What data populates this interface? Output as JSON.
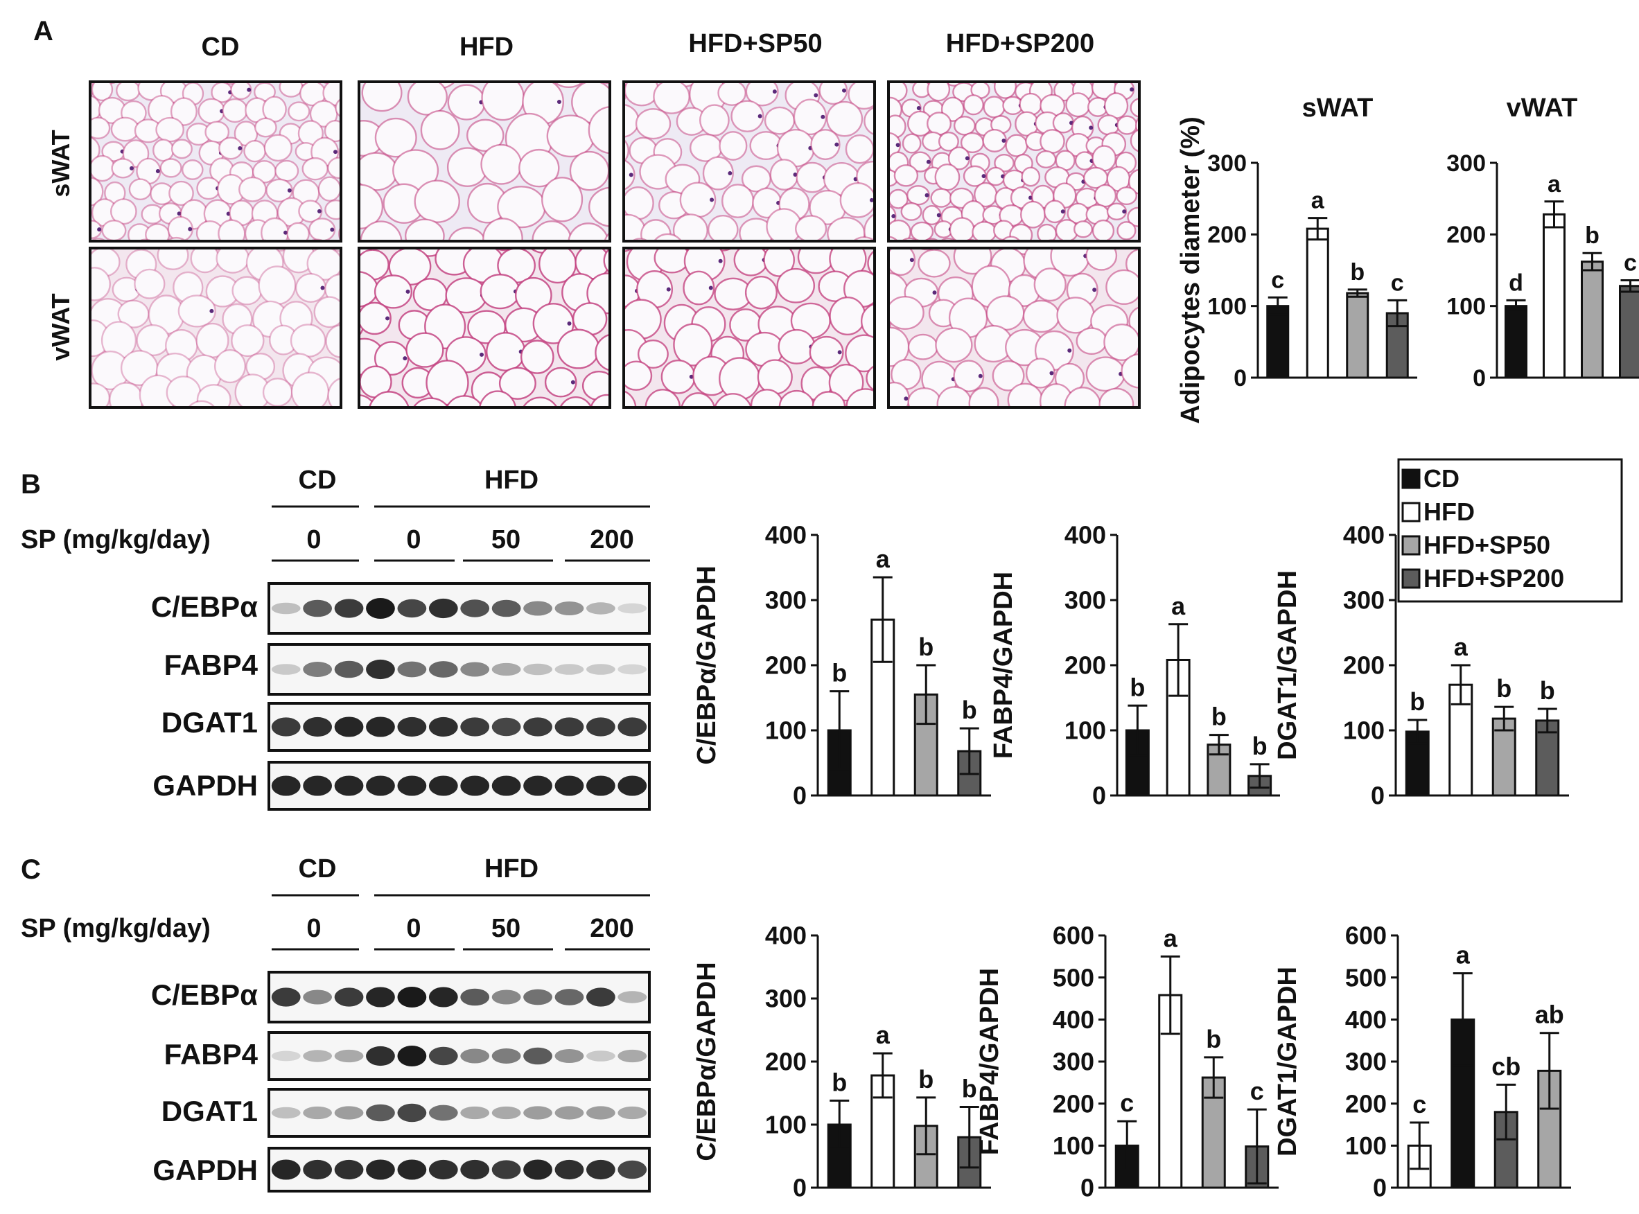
{
  "panel_labels": [
    "A",
    "B",
    "C"
  ],
  "colors": {
    "CD": "#111111",
    "HFD": "#ffffff",
    "HFD+SP50": "#a6a6a6",
    "HFD+SP200": "#5c5c5c",
    "he_background": "#f0e9f4",
    "he_stain": "#c13a7a",
    "blot_band": "#1a1a1a"
  },
  "panelA": {
    "column_headers": [
      "CD",
      "HFD",
      "HFD+SP50",
      "HFD+SP200"
    ],
    "row_labels": [
      "sWAT",
      "vWAT"
    ]
  },
  "legend": {
    "entries": [
      "CD",
      "HFD",
      "HFD+SP50",
      "HFD+SP200"
    ]
  },
  "westernB": {
    "group_labels": [
      "CD",
      "HFD"
    ],
    "dose_label": "SP (mg/kg/day)",
    "doses": [
      "0",
      "0",
      "50",
      "200"
    ],
    "proteins": [
      "C/EBPα",
      "FABP4",
      "DGAT1",
      "GAPDH"
    ],
    "band_intensity": [
      [
        0.25,
        0.7,
        0.85,
        1.0,
        0.8,
        0.9,
        0.75,
        0.7,
        0.5,
        0.45,
        0.3,
        0.15
      ],
      [
        0.2,
        0.55,
        0.7,
        0.9,
        0.6,
        0.65,
        0.5,
        0.35,
        0.25,
        0.2,
        0.2,
        0.15
      ],
      [
        0.85,
        0.9,
        0.95,
        0.95,
        0.9,
        0.9,
        0.85,
        0.8,
        0.85,
        0.85,
        0.85,
        0.85
      ],
      [
        0.95,
        0.95,
        0.95,
        0.95,
        0.95,
        0.95,
        0.95,
        0.95,
        0.95,
        0.95,
        0.95,
        0.95
      ]
    ]
  },
  "westernC": {
    "group_labels": [
      "CD",
      "HFD"
    ],
    "dose_label": "SP (mg/kg/day)",
    "doses": [
      "0",
      "0",
      "50",
      "200"
    ],
    "proteins": [
      "C/EBPα",
      "FABP4",
      "DGAT1",
      "GAPDH"
    ],
    "band_intensity": [
      [
        0.85,
        0.5,
        0.85,
        0.95,
        1.0,
        0.95,
        0.7,
        0.5,
        0.6,
        0.65,
        0.85,
        0.3
      ],
      [
        0.15,
        0.3,
        0.35,
        0.9,
        1.0,
        0.8,
        0.5,
        0.55,
        0.7,
        0.45,
        0.2,
        0.35
      ],
      [
        0.25,
        0.35,
        0.4,
        0.7,
        0.8,
        0.6,
        0.35,
        0.35,
        0.4,
        0.4,
        0.4,
        0.35
      ],
      [
        0.95,
        0.9,
        0.9,
        0.95,
        0.95,
        0.9,
        0.9,
        0.85,
        0.95,
        0.9,
        0.9,
        0.8
      ]
    ]
  },
  "chart_data": [
    {
      "id": "A_sWAT",
      "type": "bar",
      "title": "sWAT",
      "ylabel": "Adipocytes diameter (%)",
      "ylim": [
        0,
        300
      ],
      "yticks": [
        "0",
        "100",
        "200",
        "300"
      ],
      "categories": [
        "CD",
        "HFD",
        "HFD+SP50",
        "HFD+SP200"
      ],
      "values": [
        100,
        208,
        118,
        90
      ],
      "errors": [
        12,
        15,
        5,
        18
      ],
      "significance": [
        "c",
        "a",
        "b",
        "c"
      ]
    },
    {
      "id": "A_vWAT",
      "type": "bar",
      "title": "vWAT",
      "ylabel": "",
      "ylim": [
        0,
        300
      ],
      "yticks": [
        "0",
        "100",
        "200",
        "300"
      ],
      "categories": [
        "CD",
        "HFD",
        "HFD+SP50",
        "HFD+SP200"
      ],
      "values": [
        100,
        228,
        162,
        128
      ],
      "errors": [
        8,
        18,
        12,
        8
      ],
      "significance": [
        "d",
        "a",
        "b",
        "c"
      ]
    },
    {
      "id": "B_CEBPa",
      "type": "bar",
      "title": "",
      "ylabel": "C/EBPα/GAPDH",
      "ylim": [
        0,
        400
      ],
      "yticks": [
        "0",
        "100",
        "200",
        "300",
        "400"
      ],
      "categories": [
        "CD",
        "HFD",
        "HFD+SP50",
        "HFD+SP200"
      ],
      "values": [
        100,
        270,
        155,
        68
      ],
      "errors": [
        60,
        65,
        45,
        35
      ],
      "significance": [
        "b",
        "a",
        "b",
        "b"
      ]
    },
    {
      "id": "B_FABP4",
      "type": "bar",
      "title": "",
      "ylabel": "FABP4/GAPDH",
      "ylim": [
        0,
        400
      ],
      "yticks": [
        "0",
        "100",
        "200",
        "300",
        "400"
      ],
      "categories": [
        "CD",
        "HFD",
        "HFD+SP50",
        "HFD+SP200"
      ],
      "values": [
        100,
        208,
        78,
        30
      ],
      "errors": [
        38,
        55,
        15,
        18
      ],
      "significance": [
        "b",
        "a",
        "b",
        "b"
      ]
    },
    {
      "id": "B_DGAT1",
      "type": "bar",
      "title": "",
      "ylabel": "DGAT1/GAPDH",
      "ylim": [
        0,
        400
      ],
      "yticks": [
        "0",
        "100",
        "200",
        "300",
        "400"
      ],
      "categories": [
        "CD",
        "HFD",
        "HFD+SP50",
        "HFD+SP200"
      ],
      "values": [
        98,
        170,
        118,
        115
      ],
      "errors": [
        18,
        30,
        18,
        18
      ],
      "significance": [
        "b",
        "a",
        "b",
        "b"
      ]
    },
    {
      "id": "C_CEBPa",
      "type": "bar",
      "title": "",
      "ylabel": "C/EBPα/GAPDH",
      "ylim": [
        0,
        400
      ],
      "yticks": [
        "0",
        "100",
        "200",
        "300",
        "400"
      ],
      "categories": [
        "CD",
        "HFD",
        "HFD+SP50",
        "HFD+SP200"
      ],
      "values": [
        100,
        178,
        98,
        80
      ],
      "errors": [
        38,
        35,
        45,
        48
      ],
      "significance": [
        "b",
        "a",
        "b",
        "b"
      ]
    },
    {
      "id": "C_FABP4",
      "type": "bar",
      "title": "",
      "ylabel": "FABP4/GAPDH",
      "ylim": [
        0,
        600
      ],
      "yticks": [
        "0",
        "100",
        "200",
        "300",
        "400",
        "500",
        "600"
      ],
      "categories": [
        "CD",
        "HFD",
        "HFD+SP50",
        "HFD+SP200"
      ],
      "values": [
        100,
        458,
        262,
        98
      ],
      "errors": [
        58,
        92,
        48,
        88
      ],
      "significance": [
        "c",
        "a",
        "b",
        "c"
      ]
    },
    {
      "id": "C_DGAT1",
      "type": "bar",
      "title": "",
      "ylabel": "DGAT1/GAPDH",
      "ylim": [
        0,
        600
      ],
      "yticks": [
        "0",
        "100",
        "200",
        "300",
        "400",
        "500",
        "600"
      ],
      "categories": [
        "HFD",
        "CD",
        "HFD+SP200",
        "HFD+SP50"
      ],
      "values": [
        100,
        400,
        180,
        278
      ],
      "errors": [
        55,
        110,
        65,
        90
      ],
      "significance": [
        "c",
        "a",
        "cb",
        "ab"
      ]
    }
  ]
}
